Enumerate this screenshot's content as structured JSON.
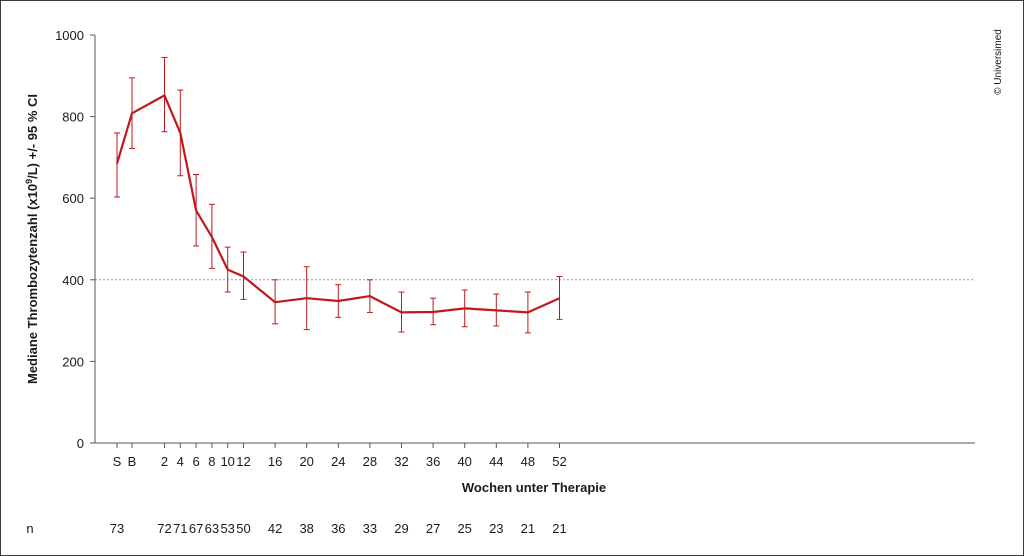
{
  "chart_data": {
    "type": "line",
    "xlabel": "Wochen unter Therapie",
    "ylabel_parts": {
      "pre": "Mediane Thrombozytenzahl (x10",
      "sup": "9",
      "post": "/L) +/- 95 % CI"
    },
    "ylim": [
      0,
      1000
    ],
    "yticks": [
      0,
      200,
      400,
      600,
      800,
      1000
    ],
    "reference_line": 400,
    "categories": [
      "S",
      "B",
      "2",
      "4",
      "6",
      "8",
      "10",
      "12",
      "16",
      "20",
      "24",
      "28",
      "32",
      "36",
      "40",
      "44",
      "48",
      "52"
    ],
    "series": [
      {
        "values": [
          685,
          808,
          852,
          760,
          570,
          505,
          425,
          408,
          345,
          355,
          348,
          360,
          320,
          321,
          330,
          325,
          320,
          355
        ],
        "ci_low": [
          603,
          722,
          763,
          655,
          483,
          428,
          370,
          352,
          292,
          278,
          308,
          320,
          272,
          290,
          285,
          287,
          270,
          303
        ],
        "ci_high": [
          760,
          895,
          945,
          865,
          658,
          585,
          480,
          468,
          400,
          432,
          388,
          400,
          370,
          355,
          375,
          365,
          370,
          408
        ]
      }
    ],
    "n_label": "n",
    "n_values": [
      "73",
      "",
      "72",
      "71",
      "67",
      "63",
      "53",
      "50",
      "42",
      "38",
      "36",
      "33",
      "29",
      "27",
      "25",
      "23",
      "21",
      "21"
    ],
    "line_color": "#c0191d",
    "reference_color": "#999999",
    "copyright": "© Universimed"
  }
}
